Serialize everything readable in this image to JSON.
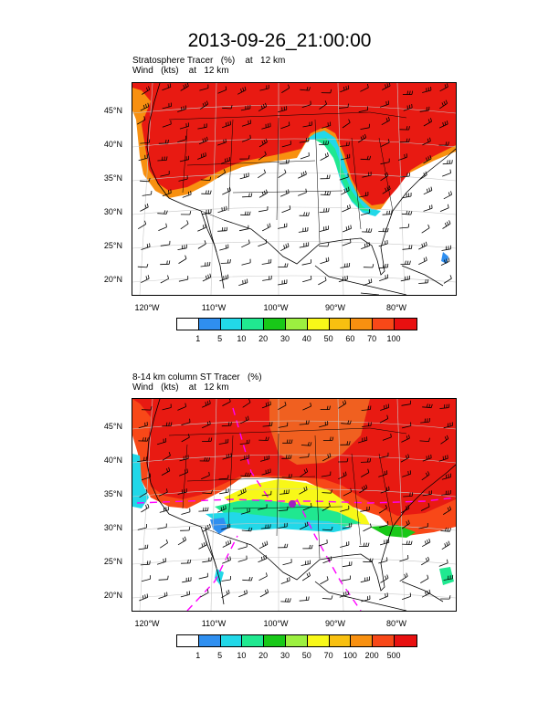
{
  "title": "2013-09-26_21:00:00",
  "panels": [
    {
      "line1": "Stratosphere Tracer   (%)    at   12 km",
      "line2": "Wind   (kts)    at   12 km",
      "lat_labels": [
        "45°N",
        "40°N",
        "35°N",
        "30°N",
        "25°N",
        "20°N"
      ],
      "lon_labels": [
        "120°W",
        "110°W",
        "100°W",
        "90°W",
        "80°W"
      ],
      "colorbar_labels": [
        "1",
        "5",
        "10",
        "20",
        "30",
        "40",
        "50",
        "60",
        "70",
        "100"
      ],
      "colorbar_colors": [
        "#ffffff",
        "#2f8ff0",
        "#22d8e8",
        "#20e890",
        "#18c818",
        "#9cf040",
        "#f8f818",
        "#f8c010",
        "#f89010",
        "#f84818",
        "#e81010"
      ]
    },
    {
      "line1": "8-14 km column ST Tracer   (%)",
      "line2": "Wind   (kts)    at   12 km",
      "lat_labels": [
        "45°N",
        "40°N",
        "35°N",
        "30°N",
        "25°N",
        "20°N"
      ],
      "lon_labels": [
        "120°W",
        "110°W",
        "100°W",
        "90°W",
        "80°W"
      ],
      "colorbar_labels": [
        "1",
        "5",
        "10",
        "20",
        "30",
        "50",
        "70",
        "100",
        "200",
        "500"
      ],
      "colorbar_colors": [
        "#ffffff",
        "#2f8ff0",
        "#22d8e8",
        "#20e890",
        "#18c818",
        "#9cf040",
        "#f8f818",
        "#f8c010",
        "#f89010",
        "#f84818",
        "#e81010"
      ]
    }
  ]
}
